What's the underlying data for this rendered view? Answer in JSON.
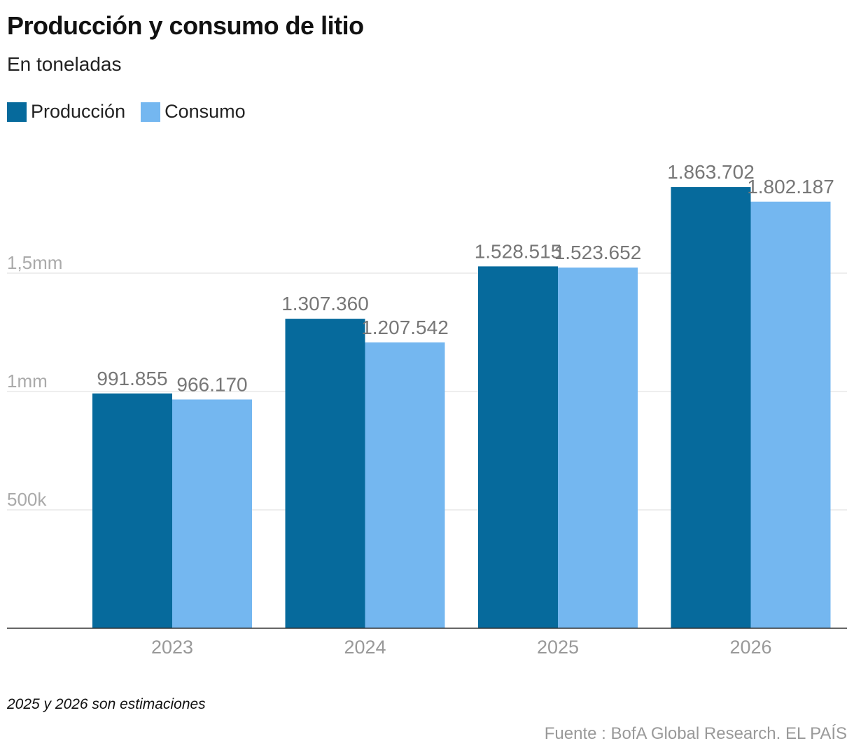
{
  "chart_data": {
    "type": "bar",
    "title": "Producción y consumo de litio",
    "subtitle": "En toneladas",
    "categories": [
      "2023",
      "2024",
      "2025",
      "2026"
    ],
    "series": [
      {
        "name": "Producción",
        "color": "#066a9c",
        "values": [
          991855,
          1307360,
          1528515,
          1863702
        ],
        "labels": [
          "991.855",
          "1.307.360",
          "1.528.515",
          "1.863.702"
        ]
      },
      {
        "name": "Consumo",
        "color": "#74b7f0",
        "values": [
          966170,
          1207542,
          1523652,
          1802187
        ],
        "labels": [
          "966.170",
          "1.207.542",
          "1.523.652",
          "1.802.187"
        ]
      }
    ],
    "yticks": [
      {
        "value": 500000,
        "label": "500k"
      },
      {
        "value": 1000000,
        "label": "1mm"
      },
      {
        "value": 1500000,
        "label": "1,5mm"
      }
    ],
    "ylim": [
      0,
      2000000
    ],
    "grid": true,
    "legend": "top-left"
  },
  "note": "2025 y 2026 son estimaciones",
  "source": "Fuente : BofA Global Research. EL PAÍS"
}
